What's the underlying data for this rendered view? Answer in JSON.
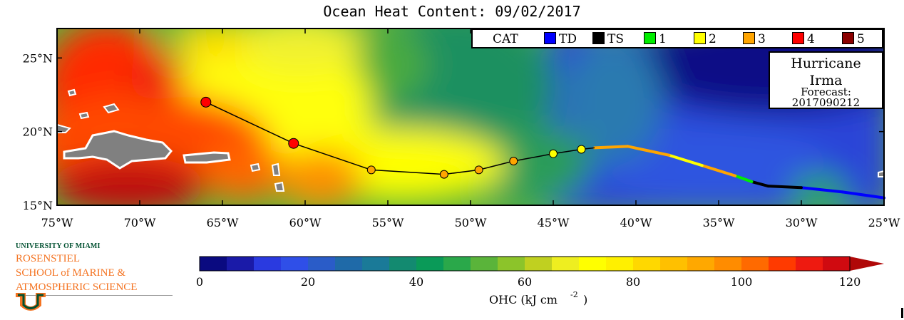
{
  "title": "Ocean Heat Content: 09/02/2017",
  "map": {
    "lon_ticks": [
      -75,
      -70,
      -65,
      -60,
      -55,
      -50,
      -45,
      -40,
      -35,
      -30,
      -25
    ],
    "lon_labels": [
      "75°W",
      "70°W",
      "65°W",
      "60°W",
      "55°W",
      "50°W",
      "45°W",
      "40°W",
      "35°W",
      "30°W",
      "25°W"
    ],
    "lat_ticks": [
      15,
      20,
      25
    ],
    "lat_labels": [
      "15°N",
      "20°N",
      "25°N"
    ],
    "lon_range": [
      -75,
      -25
    ],
    "lat_range": [
      15,
      27
    ]
  },
  "legend": {
    "header": "CAT",
    "items": [
      {
        "label": "TD",
        "color": "#0000ff"
      },
      {
        "label": "TS",
        "color": "#000000"
      },
      {
        "label": "1",
        "color": "#00ee00"
      },
      {
        "label": "2",
        "color": "#ffff00"
      },
      {
        "label": "3",
        "color": "#ffa500"
      },
      {
        "label": "4",
        "color": "#ff0000"
      },
      {
        "label": "5",
        "color": "#8b0000"
      }
    ]
  },
  "info": {
    "line1": "Hurricane",
    "line2": "Irma",
    "line3": "Forecast:",
    "line4": "2017090212"
  },
  "track": {
    "observed": [
      {
        "lon": -25.0,
        "lat": 15.5,
        "cat": "TD"
      },
      {
        "lon": -27.5,
        "lat": 15.9,
        "cat": "TD"
      },
      {
        "lon": -30.0,
        "lat": 16.2,
        "cat": "TS"
      },
      {
        "lon": -32.0,
        "lat": 16.3,
        "cat": "TS"
      },
      {
        "lon": -33.0,
        "lat": 16.6,
        "cat": "1"
      },
      {
        "lon": -34.0,
        "lat": 17.0,
        "cat": "3"
      },
      {
        "lon": -36.0,
        "lat": 17.7,
        "cat": "2"
      },
      {
        "lon": -38.0,
        "lat": 18.4,
        "cat": "3"
      },
      {
        "lon": -40.5,
        "lat": 19.0,
        "cat": "3"
      },
      {
        "lon": -42.5,
        "lat": 18.9,
        "cat": "2"
      }
    ],
    "forecast": [
      {
        "lon": -43.3,
        "lat": 18.8,
        "cat": "2"
      },
      {
        "lon": -45.0,
        "lat": 18.5,
        "cat": "2"
      },
      {
        "lon": -47.4,
        "lat": 18.0,
        "cat": "3"
      },
      {
        "lon": -49.5,
        "lat": 17.4,
        "cat": "3"
      },
      {
        "lon": -51.6,
        "lat": 17.1,
        "cat": "3"
      },
      {
        "lon": -56.0,
        "lat": 17.4,
        "cat": "3"
      },
      {
        "lon": -60.7,
        "lat": 19.2,
        "cat": "4"
      },
      {
        "lon": -66.0,
        "lat": 22.0,
        "cat": "4"
      }
    ]
  },
  "colorbar": {
    "label_prefix": "OHC (kJ cm",
    "label_exp": "-2",
    "label_suffix": ")",
    "min": 0,
    "max": 120,
    "tick_values": [
      0,
      20,
      40,
      60,
      80,
      100,
      120
    ],
    "tick_labels": [
      "0",
      "20",
      "40",
      "60",
      "80",
      "100",
      "120"
    ],
    "colors": [
      "#0a0a80",
      "#1a1aa8",
      "#2a3ae0",
      "#2f4fe8",
      "#2a5cc8",
      "#1f6aa8",
      "#1a7a98",
      "#138a70",
      "#0a9a58",
      "#2aa84a",
      "#5ab43a",
      "#8cc42a",
      "#c0d020",
      "#eeee20",
      "#ffff00",
      "#fff000",
      "#ffd800",
      "#ffc000",
      "#ffa800",
      "#ff8c00",
      "#ff6a00",
      "#ff3a00",
      "#ee1a10",
      "#d00a10",
      "#b00808"
    ]
  },
  "logo": {
    "university": "UNIVERSITY OF MIAMI",
    "line1": "ROSENSTIEL",
    "line2": "SCHOOL of MARINE &",
    "line3": "ATMOSPHERIC SCIENCE"
  }
}
